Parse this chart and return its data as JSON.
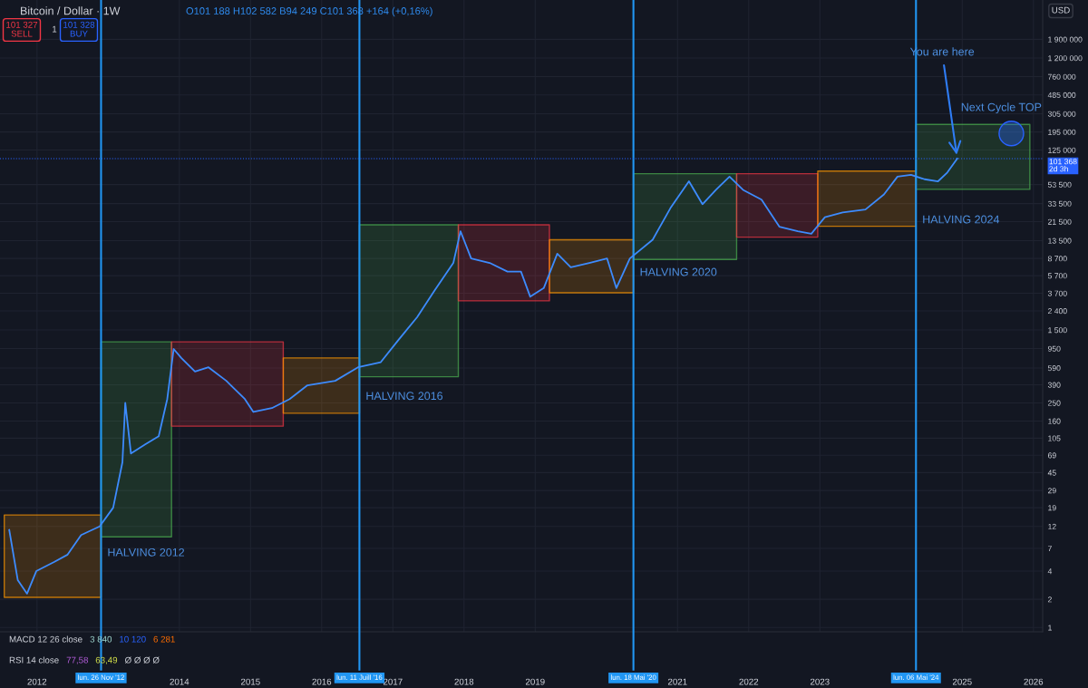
{
  "chart_data": {
    "type": "line",
    "title": "Bitcoin / Dollar · 1W",
    "subtitle": "O101 188 H102 582 B94 249 C101 368 +164 (+0,16%)",
    "annotations": [
      "101 327\nSELL",
      "1",
      "101 328\nBUY",
      "MACD 12 26 close",
      "3 840",
      "10 120",
      "6 281",
      "RSI 14 close",
      "77,58",
      "63,49",
      "Ø Ø Ø Ø",
      "USD",
      {
        "text": "HALVING 2012",
        "x": 2012.9,
        "y": 6.2
      },
      {
        "text": "HALVING 2016",
        "x": 2016.53,
        "y": 290
      },
      {
        "text": "HALVING 2020",
        "x": 2020.38,
        "y": 6100
      },
      {
        "text": "HALVING 2024",
        "x": 2024.35,
        "y": 22200
      },
      {
        "text": "You are here",
        "x": 2024.93,
        "y": 101368
      },
      {
        "text": "Next Cycle TOP",
        "x": 2025.69,
        "y": 188000
      }
    ],
    "series": [
      {
        "type": "line",
        "color": "#ff9800",
        "x": [
          2011.54,
          2012.9
        ],
        "values": [
          null,
          null
        ],
        "upper": [
          15.9,
          15.9
        ],
        "lower": [
          2.1,
          2.1
        ]
      },
      {
        "type": "line",
        "color": "#4caf50",
        "x": [
          2012.9,
          2013.89
        ],
        "values": [
          null,
          null
        ],
        "upper": [
          1120,
          1120
        ],
        "lower": [
          9.3,
          9.3
        ]
      },
      {
        "type": "line",
        "color": "#f23645",
        "x": [
          2013.89,
          2015.46
        ],
        "values": [
          null,
          null
        ],
        "upper": [
          1120,
          1120
        ],
        "lower": [
          141,
          141
        ]
      },
      {
        "type": "line",
        "color": "#ff9800",
        "x": [
          2015.46,
          2016.53
        ],
        "values": [
          null,
          null
        ],
        "upper": [
          755,
          755
        ],
        "lower": [
          194,
          194
        ]
      },
      {
        "type": "line",
        "color": "#4caf50",
        "x": [
          2016.53,
          2017.92
        ],
        "values": [
          null,
          null
        ],
        "upper": [
          19900,
          19900
        ],
        "lower": [
          475,
          475
        ]
      },
      {
        "type": "line",
        "color": "#f23645",
        "x": [
          2017.92,
          2019.2
        ],
        "values": [
          null,
          null
        ],
        "upper": [
          19900,
          19900
        ],
        "lower": [
          3070,
          3070
        ]
      },
      {
        "type": "line",
        "color": "#ff9800",
        "x": [
          2019.2,
          2020.38
        ],
        "values": [
          null,
          null
        ],
        "upper": [
          13800,
          13800
        ],
        "lower": [
          3750,
          3750
        ]
      },
      {
        "type": "line",
        "color": "#4caf50",
        "x": [
          2020.38,
          2021.83
        ],
        "values": [
          null,
          null
        ],
        "upper": [
          70000,
          70000
        ],
        "lower": [
          8500,
          8500
        ]
      },
      {
        "type": "line",
        "color": "#f23645",
        "x": [
          2021.83,
          2022.97
        ],
        "values": [
          null,
          null
        ],
        "upper": [
          70000,
          70000
        ],
        "lower": [
          14700,
          14700
        ]
      },
      {
        "type": "line",
        "color": "#ff9800",
        "x": [
          2022.97,
          2024.35
        ],
        "values": [
          null,
          null
        ],
        "upper": [
          74500,
          74500
        ],
        "lower": [
          19200,
          19200
        ]
      },
      {
        "type": "line",
        "color": "#4caf50",
        "x": [
          2024.35,
          2025.95
        ],
        "values": [
          null,
          null
        ],
        "upper": [
          235000,
          235000
        ],
        "lower": [
          47600,
          47600
        ]
      },
      {
        "color": "#3d8bfd",
        "x": [
          2011.61,
          2011.73,
          2011.86,
          2011.99,
          2012.24,
          2012.43,
          2012.62,
          2012.88,
          2013.07,
          2013.2,
          2013.24,
          2013.32,
          2013.52,
          2013.71,
          2013.83,
          2013.92,
          2014.03,
          2014.22,
          2014.41,
          2014.66,
          2014.92,
          2015.04,
          2015.3,
          2015.55,
          2015.8,
          2016.19,
          2016.51,
          2016.83,
          2017.08,
          2017.34,
          2017.59,
          2017.85,
          2017.95,
          2018.1,
          2018.36,
          2018.61,
          2018.8,
          2018.93,
          2019.12,
          2019.31,
          2019.5,
          2019.76,
          2020.01,
          2020.14,
          2020.33,
          2020.65,
          2020.9,
          2021.16,
          2021.35,
          2021.54,
          2021.73,
          2021.92,
          2022.18,
          2022.43,
          2022.69,
          2022.88,
          2023.07,
          2023.32,
          2023.64,
          2023.9,
          2024.09,
          2024.28,
          2024.47,
          2024.66,
          2024.79,
          2024.93
        ],
        "values": [
          11,
          3.2,
          2.3,
          4,
          5,
          6,
          9.7,
          12,
          19,
          58,
          250,
          72,
          90,
          110,
          275,
          940,
          750,
          540,
          600,
          430,
          275,
          200,
          220,
          275,
          385,
          430,
          600,
          680,
          1180,
          2050,
          4000,
          7800,
          17000,
          8700,
          7800,
          6300,
          6300,
          3400,
          4200,
          9800,
          7000,
          7800,
          8700,
          4200,
          8700,
          13800,
          30000,
          58000,
          33000,
          47000,
          65000,
          47000,
          37000,
          19000,
          17000,
          16000,
          24000,
          27000,
          29000,
          42000,
          65000,
          68000,
          61000,
          58000,
          72000,
          101368
        ]
      },
      {
        "type": "scatter",
        "color": "#2962ff",
        "marker": "circle",
        "x": [
          2025.69
        ],
        "values": [
          188000
        ]
      }
    ],
    "ref_lines": [
      {
        "axis": "x",
        "value": 2012.9,
        "label": "lun. 26 Nov '12",
        "color": "#2196f3"
      },
      {
        "axis": "x",
        "value": 2016.53,
        "label": "lun. 11 Juill '16",
        "color": "#2196f3"
      },
      {
        "axis": "x",
        "value": 2020.38,
        "label": "lun. 18 Mai '20",
        "color": "#2196f3"
      },
      {
        "axis": "x",
        "value": 2024.35,
        "label": "lun. 06 Mai '24",
        "color": "#2196f3"
      },
      {
        "axis": "y",
        "value": 101368,
        "label": "101 368\n2d 3h",
        "color": "#2962ff",
        "line_style": "dotted"
      }
    ],
    "xlim": [
      2011.48,
      2026.13
    ],
    "xticks": [
      2012,
      2014,
      2015,
      2016,
      2017,
      2018,
      2019,
      2021,
      2022,
      2023,
      2025,
      2026
    ],
    "log": true,
    "ylim": [
      0.9,
      5000000
    ],
    "yticks": [
      1,
      2,
      4,
      7,
      12,
      19,
      29,
      45,
      69,
      105,
      160,
      250,
      390,
      590,
      950,
      {
        "value": 1500,
        "label": "1 500"
      },
      {
        "value": 2400,
        "label": "2 400"
      },
      {
        "value": 3700,
        "label": "3 700"
      },
      {
        "value": 5700,
        "label": "5 700"
      },
      {
        "value": 8700,
        "label": "8 700"
      },
      {
        "value": 13500,
        "label": "13 500"
      },
      {
        "value": 21500,
        "label": "21 500"
      },
      {
        "value": 33500,
        "label": "33 500"
      },
      {
        "value": 53500,
        "label": "53 500"
      },
      {
        "value": 125000,
        "label": "125 000"
      },
      {
        "value": 195000,
        "label": "195 000"
      },
      {
        "value": 305000,
        "label": "305 000"
      },
      {
        "value": 485000,
        "label": "485 000"
      },
      {
        "value": 760000,
        "label": "760 000"
      },
      {
        "value": 1200000,
        "label": "1 200 000"
      },
      {
        "value": 1900000,
        "label": "1 900 000"
      }
    ],
    "grid": true,
    "legend": false,
    "marker": "none",
    "line_style": "solid"
  }
}
